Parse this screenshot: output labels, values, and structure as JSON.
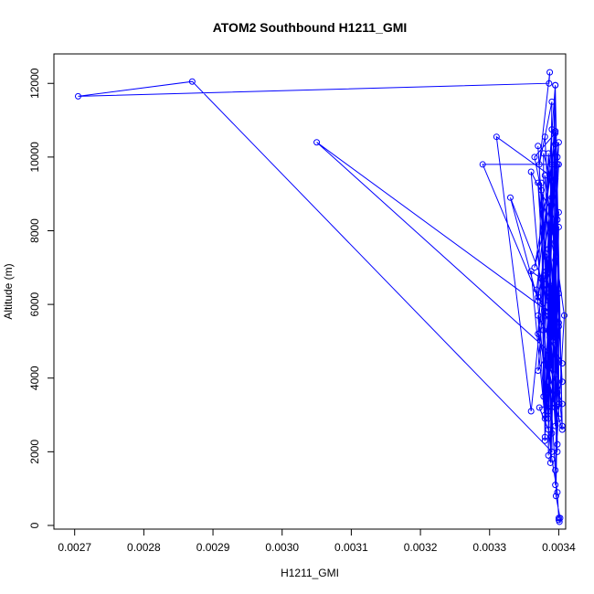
{
  "chart_data": {
    "type": "line",
    "title": "ATOM2 Southbound H1211_GMI",
    "xlabel": "H1211_GMI",
    "ylabel": "Altitude (m)",
    "xlim": [
      0.00267,
      0.00341
    ],
    "ylim": [
      -100,
      12800
    ],
    "xticks": [
      "0.0027",
      "0.0028",
      "0.0029",
      "0.0030",
      "0.0031",
      "0.0032",
      "0.0033",
      "0.0034"
    ],
    "xtick_values": [
      0.0027,
      0.0028,
      0.0029,
      0.003,
      0.0031,
      0.0032,
      0.0033,
      0.0034
    ],
    "yticks": [
      "0",
      "2000",
      "4000",
      "6000",
      "8000",
      "10000",
      "12000"
    ],
    "ytick_values": [
      0,
      2000,
      4000,
      6000,
      8000,
      10000,
      12000
    ],
    "series": [
      {
        "color": "#0000ff",
        "marker": "open-circle",
        "x": [
          0.0034,
          0.003398,
          0.00339,
          0.003385,
          0.003372,
          0.003405,
          0.003385,
          0.00339,
          0.003372,
          0.003387,
          0.003386,
          0.002705,
          0.00287,
          0.00339,
          0.003395,
          0.00338,
          0.00337,
          0.003405,
          0.00305,
          0.003385,
          0.00337,
          0.003375,
          0.00338,
          0.003395,
          0.003365,
          0.003395,
          0.00338,
          0.00338,
          0.003395,
          0.00331,
          0.00336,
          0.0034,
          0.00339,
          0.00336,
          0.00338,
          0.0034,
          0.00329,
          0.003395,
          0.00337,
          0.00338,
          0.003385,
          0.0034,
          0.00333,
          0.00337,
          0.00339,
          0.003365,
          0.003395,
          0.003405,
          0.003385,
          0.00336,
          0.0034,
          0.003395,
          0.00337,
          0.00339,
          0.003385,
          0.003385,
          0.003395,
          0.003395,
          0.00337,
          0.003388,
          0.0034,
          0.003378,
          0.003378,
          0.003375,
          0.003385,
          0.003398,
          0.00338,
          0.0034,
          0.003395,
          0.003368,
          0.003385,
          0.003398,
          0.003395,
          0.00338,
          0.003408,
          0.003395,
          0.00337,
          0.003405,
          0.003395,
          0.003375,
          0.003385,
          0.003405,
          0.00339,
          0.003378,
          0.00339,
          0.003398,
          0.003385,
          0.003395,
          0.00338,
          0.0034,
          0.003392,
          0.003382,
          0.00339,
          0.003398,
          0.003387,
          0.003388,
          0.003395,
          0.0034,
          0.003395,
          0.003398,
          0.003385,
          0.0034,
          0.0034,
          0.003395,
          0.003398,
          0.003396,
          0.003402,
          0.003401,
          0.0034
        ],
        "y": [
          200,
          900,
          1800,
          2600,
          3200,
          3300,
          4400,
          11500,
          9800,
          12300,
          12000,
          11650,
          12050,
          2000,
          11950,
          3000,
          5700,
          4400,
          10400,
          5800,
          6200,
          9300,
          2400,
          7200,
          10000,
          10650,
          2300,
          5700,
          9400,
          10550,
          3100,
          10400,
          6500,
          6900,
          2900,
          9800,
          9800,
          5100,
          4200,
          6700,
          10100,
          5500,
          8900,
          6100,
          8900,
          7000,
          10350,
          2600,
          3900,
          9600,
          8100,
          3200,
          5200,
          10750,
          1900,
          6100,
          10700,
          2700,
          10300,
          4600,
          8500,
          10100,
          3500,
          9100,
          6300,
          2000,
          7300,
          5400,
          10700,
          6400,
          2900,
          10000,
          4100,
          9500,
          5700,
          1500,
          9300,
          2700,
          11950,
          6700,
          3100,
          3900,
          8700,
          5300,
          9800,
          2200,
          7500,
          4900,
          10550,
          3300,
          8100,
          6900,
          2500,
          9800,
          5100,
          1700,
          7700,
          3300,
          5900,
          8300,
          4300,
          2900,
          6300,
          1100,
          3600,
          800,
          200,
          100,
          150
        ]
      }
    ],
    "grid": false
  }
}
